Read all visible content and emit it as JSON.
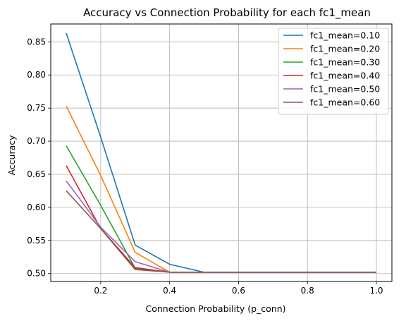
{
  "chart_data": {
    "type": "line",
    "title": "Accuracy vs Connection Probability for each fc1_mean",
    "xlabel": "Connection Probability (p_conn)",
    "ylabel": "Accuracy",
    "xlim": [
      0.055,
      1.045
    ],
    "ylim": [
      0.488,
      0.877
    ],
    "xticks": [
      0.2,
      0.4,
      0.6,
      0.8,
      1.0
    ],
    "xtick_labels": [
      "0.2",
      "0.4",
      "0.6",
      "0.8",
      "1.0"
    ],
    "yticks": [
      0.5,
      0.55,
      0.6,
      0.65,
      0.7,
      0.75,
      0.8,
      0.85
    ],
    "ytick_labels": [
      "0.50",
      "0.55",
      "0.60",
      "0.65",
      "0.70",
      "0.75",
      "0.80",
      "0.85"
    ],
    "grid": true,
    "legend_position": "top-right",
    "x": [
      0.1,
      0.2,
      0.3,
      0.4,
      0.5,
      0.6,
      0.7,
      0.8,
      0.9,
      1.0
    ],
    "series": [
      {
        "name": "fc1_mean=0.10",
        "color": "#1f77b4",
        "values": [
          0.863,
          0.706,
          0.543,
          0.514,
          0.502,
          0.502,
          0.502,
          0.502,
          0.502,
          0.502
        ]
      },
      {
        "name": "fc1_mean=0.20",
        "color": "#ff7f0e",
        "values": [
          0.753,
          0.648,
          0.532,
          0.502,
          0.502,
          0.502,
          0.502,
          0.502,
          0.502,
          0.502
        ]
      },
      {
        "name": "fc1_mean=0.30",
        "color": "#2ca02c",
        "values": [
          0.693,
          0.603,
          0.508,
          0.502,
          0.502,
          0.502,
          0.502,
          0.502,
          0.502,
          0.502
        ]
      },
      {
        "name": "fc1_mean=0.40",
        "color": "#d62728",
        "values": [
          0.663,
          0.568,
          0.509,
          0.502,
          0.502,
          0.502,
          0.502,
          0.502,
          0.502,
          0.502
        ]
      },
      {
        "name": "fc1_mean=0.50",
        "color": "#9467bd",
        "values": [
          0.64,
          0.57,
          0.518,
          0.502,
          0.502,
          0.502,
          0.502,
          0.502,
          0.502,
          0.502
        ]
      },
      {
        "name": "fc1_mean=0.60",
        "color": "#8c564b",
        "values": [
          0.625,
          0.568,
          0.506,
          0.502,
          0.502,
          0.502,
          0.502,
          0.502,
          0.502,
          0.502
        ]
      }
    ]
  }
}
